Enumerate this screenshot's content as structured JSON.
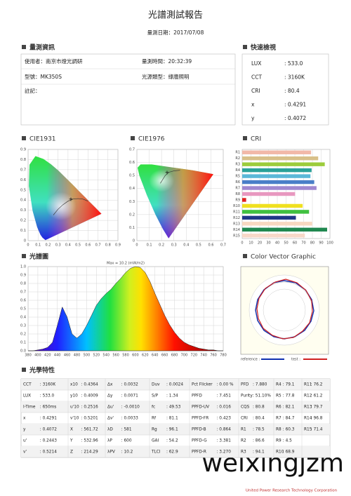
{
  "header": {
    "title": "光譜測試報告",
    "date": "量測日期：2017/07/08"
  },
  "info": {
    "heading": "量測資訊",
    "user": "使用者：南京市燈光調研",
    "time": "量測時間：20:32:39",
    "model": "型號：MK350S",
    "source": "光源類型：綠牆照明",
    "note": "註記："
  },
  "quick": {
    "heading": "快速檢視",
    "rows": [
      [
        "LUX",
        ": 533.0"
      ],
      [
        "CCT",
        ": 3160K"
      ],
      [
        "CRI",
        ": 80.4"
      ],
      [
        "x",
        ": 0.4291"
      ],
      [
        "y",
        ": 0.4072"
      ]
    ]
  },
  "cie1931": {
    "heading": "CIE1931",
    "xlim": [
      0,
      0.9
    ],
    "ylim": [
      0,
      0.9
    ],
    "xticks": [
      0,
      0.1,
      0.2,
      0.3,
      0.4,
      0.5,
      0.6,
      0.7,
      0.8,
      0.9
    ],
    "yticks": [
      0,
      0.1,
      0.2,
      0.3,
      0.4,
      0.5,
      0.6,
      0.7,
      0.8,
      0.9
    ]
  },
  "cie1976": {
    "heading": "CIE1976",
    "xlim": [
      0,
      0.7
    ],
    "ylim": [
      0,
      0.7
    ],
    "xticks": [
      0,
      0.1,
      0.2,
      0.3,
      0.4,
      0.5,
      0.6,
      0.7
    ],
    "yticks": [
      0,
      0.1,
      0.2,
      0.3,
      0.4,
      0.5,
      0.6,
      0.7
    ]
  },
  "cri": {
    "heading": "CRI",
    "type": "bar",
    "categories": [
      "R1",
      "R2",
      "R3",
      "R4",
      "R5",
      "R6",
      "R7",
      "R8",
      "R9",
      "R10",
      "R11",
      "R12",
      "R13",
      "R14",
      "R15"
    ],
    "values": [
      78.5,
      86.6,
      94.1,
      79.1,
      77.8,
      82.1,
      84.7,
      60.3,
      4.5,
      68.9,
      76.2,
      61.2,
      79.7,
      96.8,
      71.4
    ],
    "colors": [
      "#f2b8a8",
      "#d8c08a",
      "#9ccc3c",
      "#2aa198",
      "#5bb8d8",
      "#4a7fc8",
      "#a088d0",
      "#e898c0",
      "#e02020",
      "#f0e020",
      "#40c040",
      "#203888",
      "#f8d8c0",
      "#208850",
      "#f8d8c8"
    ],
    "xlim": [
      0,
      100
    ],
    "xticks": [
      0,
      10,
      20,
      30,
      40,
      50,
      60,
      70,
      80,
      90,
      100
    ]
  },
  "spectrum": {
    "heading": "光譜圖",
    "max_label": "Max = 10.2 (mW/m2)",
    "type": "area",
    "x": [
      380,
      390,
      400,
      410,
      420,
      430,
      440,
      450,
      460,
      470,
      480,
      490,
      500,
      510,
      520,
      530,
      540,
      550,
      560,
      570,
      580,
      590,
      600,
      610,
      620,
      630,
      640,
      650,
      660,
      670,
      680,
      690,
      700,
      710,
      720,
      730,
      740,
      750,
      760,
      770,
      780
    ],
    "values": [
      0,
      0,
      0.01,
      0.02,
      0.04,
      0.1,
      0.3,
      0.52,
      0.4,
      0.2,
      0.15,
      0.2,
      0.3,
      0.42,
      0.54,
      0.62,
      0.68,
      0.73,
      0.8,
      0.86,
      0.93,
      0.98,
      1.0,
      0.99,
      0.93,
      0.82,
      0.68,
      0.55,
      0.42,
      0.31,
      0.22,
      0.15,
      0.1,
      0.07,
      0.05,
      0.03,
      0.02,
      0.01,
      0.01,
      0,
      0
    ],
    "xlim": [
      380,
      780
    ],
    "ylim": [
      0,
      1
    ],
    "xticks": [
      380,
      400,
      420,
      440,
      460,
      480,
      500,
      520,
      540,
      560,
      580,
      600,
      620,
      640,
      660,
      680,
      700,
      720,
      740,
      760,
      780
    ],
    "yticks": [
      {
        "value": 0,
        "label": "0.0"
      },
      0.1,
      0.2,
      0.3,
      0.4,
      0.5,
      0.6,
      0.7,
      0.8,
      0.9,
      {
        "value": 1,
        "label": "1.0"
      }
    ]
  },
  "vector": {
    "heading": "Color Vector Graphic",
    "reference": "reference :",
    "test": "test :"
  },
  "optical": {
    "heading": "光學特性",
    "rows": [
      [
        [
          "CCT",
          ": 3160K"
        ],
        [
          "x10",
          ": 0.4364"
        ],
        [
          "Δx",
          ": 0.0032"
        ],
        [
          "Duv",
          ": 0.0024"
        ],
        [
          "Pct Flicker",
          ": 0.00 %"
        ],
        [
          "PFD",
          ": 7.880"
        ],
        [
          "R4",
          ": 79.1"
        ],
        [
          "R11",
          ": 76.2"
        ]
      ],
      [
        [
          "LUX",
          ": 533.0"
        ],
        [
          "y10",
          ": 0.4009"
        ],
        [
          "Δy",
          ": 0.0071"
        ],
        [
          "S/P",
          ": 1.34"
        ],
        [
          "PPFD",
          ": 7.451"
        ],
        [
          "Purity",
          ": 51.10%"
        ],
        [
          "R5",
          ": 77.8"
        ],
        [
          "R12",
          ": 61.2"
        ]
      ],
      [
        [
          "I-Time",
          ": 650ms"
        ],
        [
          "u'10",
          ": 0.2516"
        ],
        [
          "Δu'",
          ": -0.0010"
        ],
        [
          "fc",
          ": 49.53"
        ],
        [
          "PPFD-UV",
          ": 0.016"
        ],
        [
          "CQS",
          ": 80.8"
        ],
        [
          "R6",
          ": 82.1"
        ],
        [
          "R13",
          ": 79.7"
        ]
      ],
      [
        [
          "x",
          ": 0.4291"
        ],
        [
          "v'10",
          ": 0.5201"
        ],
        [
          "Δv'",
          ": 0.0033"
        ],
        [
          "Rf",
          ": 81.1"
        ],
        [
          "PPFD-FR",
          ": 0.423"
        ],
        [
          "CRI",
          ": 80.4"
        ],
        [
          "R7",
          ": 84.7"
        ],
        [
          "R14",
          ": 96.8"
        ]
      ],
      [
        [
          "y",
          ": 0.4072"
        ],
        [
          "X",
          ": 561.72"
        ],
        [
          "λD",
          ": 581"
        ],
        [
          "Rg",
          ": 96.1"
        ],
        [
          "PPFD-B",
          ": 0.864"
        ],
        [
          "R1",
          ": 78.5"
        ],
        [
          "R8",
          ": 60.3"
        ],
        [
          "R15",
          ": 71.4"
        ]
      ],
      [
        [
          "u'",
          ": 0.2443"
        ],
        [
          "Y",
          ": 532.96"
        ],
        [
          "λP",
          ": 600"
        ],
        [
          "GAI",
          ": 54.2"
        ],
        [
          "PPFD-G",
          ": 3.381"
        ],
        [
          "R2",
          ": 86.6"
        ],
        [
          "R9",
          ": 4.5"
        ]
      ],
      [
        [
          "v'",
          ": 0.5214"
        ],
        [
          "Z",
          ": 214.29"
        ],
        [
          "λPV",
          ": 10.2"
        ],
        [
          "TLCI",
          ": 62.9"
        ],
        [
          "PPFD-R",
          ": 3.270"
        ],
        [
          "R3",
          ": 94.1"
        ],
        [
          "R10",
          ": 68.9"
        ]
      ]
    ]
  },
  "footer": {
    "watermark": "weixingjzm",
    "company": "United Power Research Technology Corporation"
  }
}
